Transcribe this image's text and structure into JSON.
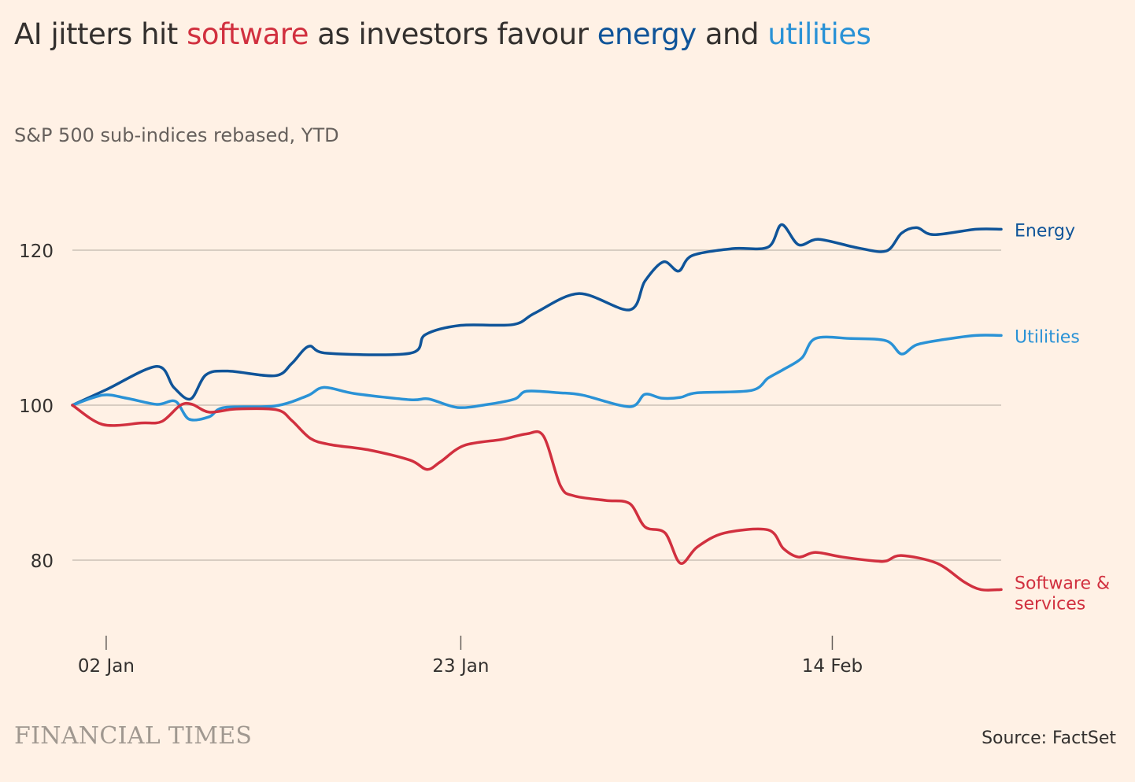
{
  "title": {
    "part1": "AI jitters hit ",
    "software": "software",
    "part2": " as investors favour ",
    "energy": "energy",
    "part3": " and ",
    "utilities": "utilities"
  },
  "subtitle": "S&P 500 sub-indices rebased, YTD",
  "logo": "FINANCIAL TIMES",
  "source": "Source: FactSet",
  "colors": {
    "energy": "#0F5499",
    "utilities": "#2A92D6",
    "software": "#D1303F",
    "grid": "#CCC1B7",
    "background": "#FFF1E5"
  },
  "chart_data": {
    "type": "line",
    "title": "AI jitters hit software as investors favour energy and utilities",
    "xlabel": "",
    "ylabel": "",
    "x_units": "days since 31 Dec",
    "xlim": [
      0,
      55
    ],
    "ylim": [
      70,
      128
    ],
    "y_ticks": [
      80,
      100,
      120
    ],
    "x_ticks": [
      {
        "x": 2,
        "label": "02 Jan"
      },
      {
        "x": 23,
        "label": "23 Jan"
      },
      {
        "x": 45,
        "label": "14 Feb"
      }
    ],
    "grid": "horizontal",
    "legend": "inline-right",
    "series": [
      {
        "name": "Energy",
        "key": "energy",
        "label_lines": [
          "Energy"
        ],
        "points": [
          [
            0,
            100
          ],
          [
            2,
            102
          ],
          [
            5,
            105
          ],
          [
            6,
            102.3
          ],
          [
            7,
            100.8
          ],
          [
            7.9,
            103.9
          ],
          [
            9.2,
            104.4
          ],
          [
            12,
            103.8
          ],
          [
            13,
            105.4
          ],
          [
            14,
            107.6
          ],
          [
            15.1,
            106.7
          ],
          [
            20,
            106.7
          ],
          [
            20.9,
            109.1
          ],
          [
            23,
            110.3
          ],
          [
            26.1,
            110.4
          ],
          [
            27.4,
            111.9
          ],
          [
            30,
            114.4
          ],
          [
            33,
            112.3
          ],
          [
            33.9,
            116
          ],
          [
            35,
            118.5
          ],
          [
            35.9,
            117.3
          ],
          [
            36.7,
            119.3
          ],
          [
            39.1,
            120.2
          ],
          [
            41.2,
            120.4
          ],
          [
            42,
            123.3
          ],
          [
            43,
            120.7
          ],
          [
            44.2,
            121.4
          ],
          [
            46.5,
            120.3
          ],
          [
            48.2,
            119.9
          ],
          [
            49.1,
            122.2
          ],
          [
            50,
            122.9
          ],
          [
            51,
            122
          ],
          [
            53.5,
            122.7
          ],
          [
            55,
            122.7
          ]
        ]
      },
      {
        "name": "Utilities",
        "key": "utilities",
        "label_lines": [
          "Utilities"
        ],
        "points": [
          [
            0,
            100
          ],
          [
            1.8,
            101.3
          ],
          [
            3.2,
            100.9
          ],
          [
            5,
            100.1
          ],
          [
            6.1,
            100.5
          ],
          [
            6.9,
            98.2
          ],
          [
            8.1,
            98.5
          ],
          [
            9,
            99.7
          ],
          [
            12,
            99.9
          ],
          [
            13.9,
            101.2
          ],
          [
            14.9,
            102.3
          ],
          [
            16.7,
            101.5
          ],
          [
            20,
            100.7
          ],
          [
            21.1,
            100.8
          ],
          [
            22.8,
            99.7
          ],
          [
            24.6,
            100.1
          ],
          [
            26.2,
            100.8
          ],
          [
            26.9,
            101.8
          ],
          [
            28.8,
            101.6
          ],
          [
            30.2,
            101.3
          ],
          [
            33,
            99.8
          ],
          [
            33.9,
            101.4
          ],
          [
            34.9,
            100.9
          ],
          [
            36,
            101
          ],
          [
            37,
            101.6
          ],
          [
            40.2,
            101.9
          ],
          [
            41.2,
            103.5
          ],
          [
            42.1,
            104.6
          ],
          [
            43.2,
            106.1
          ],
          [
            44,
            108.6
          ],
          [
            46.1,
            108.6
          ],
          [
            48.2,
            108.3
          ],
          [
            49.1,
            106.6
          ],
          [
            50,
            107.8
          ],
          [
            51.7,
            108.5
          ],
          [
            53.5,
            109
          ],
          [
            55,
            109
          ]
        ]
      },
      {
        "name": "Software & services",
        "key": "software",
        "label_lines": [
          "Software &",
          "services"
        ],
        "points": [
          [
            0,
            100
          ],
          [
            1.8,
            97.5
          ],
          [
            4.1,
            97.7
          ],
          [
            5.3,
            97.9
          ],
          [
            6.4,
            100
          ],
          [
            7.1,
            100.1
          ],
          [
            8.1,
            99.1
          ],
          [
            9.7,
            99.5
          ],
          [
            12.1,
            99.4
          ],
          [
            13,
            98
          ],
          [
            14.1,
            95.7
          ],
          [
            15.3,
            94.9
          ],
          [
            17.6,
            94.2
          ],
          [
            20,
            92.9
          ],
          [
            21,
            91.7
          ],
          [
            21.8,
            92.7
          ],
          [
            23.2,
            94.8
          ],
          [
            25.5,
            95.6
          ],
          [
            26.9,
            96.3
          ],
          [
            27.9,
            96
          ],
          [
            28.9,
            89.6
          ],
          [
            29.7,
            88.3
          ],
          [
            31.6,
            87.7
          ],
          [
            33,
            87.3
          ],
          [
            33.9,
            84.3
          ],
          [
            35.1,
            83.5
          ],
          [
            36,
            79.6
          ],
          [
            37,
            81.7
          ],
          [
            38.6,
            83.5
          ],
          [
            41.2,
            83.9
          ],
          [
            42.1,
            81.5
          ],
          [
            43,
            80.4
          ],
          [
            44,
            81
          ],
          [
            45.6,
            80.4
          ],
          [
            47.5,
            79.9
          ],
          [
            48.2,
            79.9
          ],
          [
            49.1,
            80.6
          ],
          [
            51.2,
            79.6
          ],
          [
            52.8,
            77.2
          ],
          [
            53.8,
            76.2
          ],
          [
            55,
            76.2
          ]
        ]
      }
    ]
  }
}
